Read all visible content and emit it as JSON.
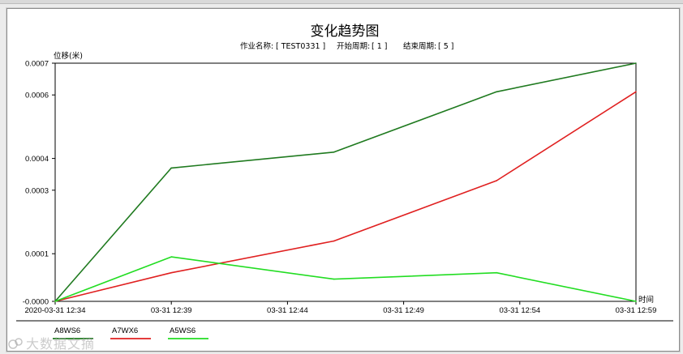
{
  "chart_data": {
    "type": "line",
    "title": "变化趋势图",
    "meta": {
      "job_label": "作业名称:",
      "job_value": "[ TEST0331 ]",
      "start_label": "开始周期:",
      "start_value": "[ 1 ]",
      "end_label": "结束周期:",
      "end_value": "[ 5 ]"
    },
    "ylabel": "位移(米)",
    "xlabel": "时间",
    "ylim": [
      -0.0,
      0.0007
    ],
    "y_ticks": [
      {
        "value": 0.0007,
        "label": "0.0007"
      },
      {
        "value": 0.0006,
        "label": "0.0006"
      },
      {
        "value": 0.0004,
        "label": "0.0004"
      },
      {
        "value": 0.0003,
        "label": "0.0003"
      },
      {
        "value": 0.0001,
        "label": "0.0001"
      },
      {
        "value": -5e-05,
        "label": "-0.0000"
      }
    ],
    "x_ticks": [
      "2020-03-31 12:34",
      "03-31 12:39",
      "03-31 12:44",
      "03-31 12:49",
      "03-31 12:54",
      "03-31 12:59"
    ],
    "x": [
      "2020-03-31 12:34",
      "2020-03-31 12:39",
      "2020-03-31 12:46",
      "2020-03-31 12:53",
      "2020-03-31 12:59"
    ],
    "grid": false,
    "legend_position": "bottom",
    "series": [
      {
        "name": "A8WS6",
        "color": "#1f7a1f",
        "values": [
          -5e-05,
          0.00037,
          0.00042,
          0.00061,
          0.0007
        ]
      },
      {
        "name": "A7WX6",
        "color": "#e02020",
        "values": [
          -5e-05,
          4e-05,
          0.00014,
          0.00033,
          0.00061
        ]
      },
      {
        "name": "A5WS6",
        "color": "#22dd22",
        "values": [
          -5e-05,
          9e-05,
          2e-05,
          4e-05,
          -5e-05
        ]
      }
    ]
  },
  "watermark": "大数据文摘"
}
